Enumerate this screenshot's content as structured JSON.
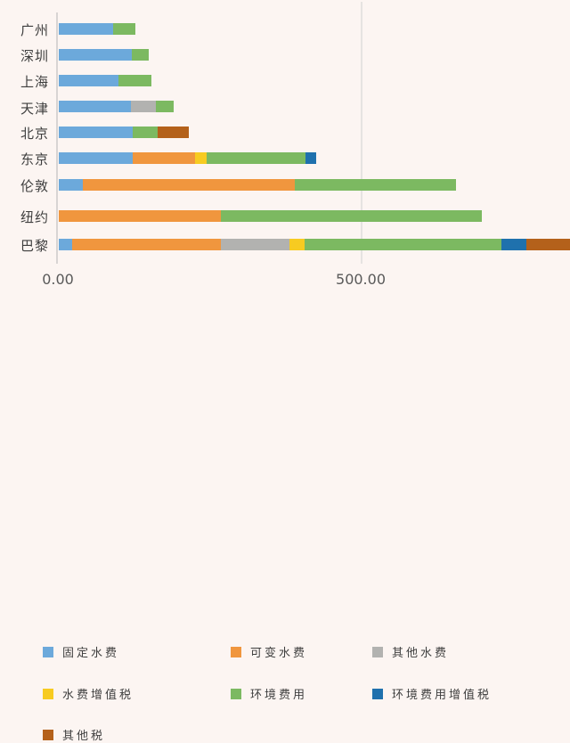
{
  "chart_data": {
    "type": "bar",
    "orientation": "horizontal",
    "stacked": true,
    "title": "",
    "xlabel": "",
    "ylabel": "",
    "categories": [
      "广州",
      "深圳",
      "上海",
      "天津",
      "北京",
      "东京",
      "伦敦",
      "纽约",
      "巴黎"
    ],
    "series": [
      {
        "name": "固定水费",
        "color": "#6CA9DB",
        "values": [
          90,
          121,
          99,
          119,
          122,
          122,
          40,
          0,
          22
        ]
      },
      {
        "name": "可变水费",
        "color": "#F0963E",
        "values": [
          0,
          0,
          0,
          0,
          0,
          103,
          350,
          268,
          246
        ]
      },
      {
        "name": "其他水费",
        "color": "#B2B2B0",
        "values": [
          0,
          0,
          0,
          41,
          0,
          0,
          0,
          0,
          113
        ]
      },
      {
        "name": "水费增值税",
        "color": "#F7CB21",
        "values": [
          0,
          0,
          0,
          0,
          0,
          19,
          0,
          0,
          25
        ]
      },
      {
        "name": "环境费用",
        "color": "#7CB961",
        "values": [
          37,
          28,
          54,
          29,
          41,
          163,
          266,
          431,
          325
        ]
      },
      {
        "name": "环境费用增值税",
        "color": "#1F71AD",
        "values": [
          0,
          0,
          0,
          0,
          0,
          18,
          0,
          0,
          41
        ]
      },
      {
        "name": "其他税",
        "color": "#B4611B",
        "values": [
          0,
          0,
          0,
          0,
          51,
          0,
          0,
          0,
          80
        ]
      }
    ],
    "x_ticks": [
      0,
      500
    ],
    "x_tick_labels": [
      "0.00",
      "500.00"
    ],
    "xlim_visible": [
      0,
      844
    ],
    "gridlines": "vertical at 500 only",
    "legend_position": "bottom",
    "note_clipping": "巴黎 bar extends past the right edge of the plot (其他税 segment clipped)"
  },
  "colors": {
    "background": "#FCF5F2",
    "axis_line": "#D8D4D3",
    "gridline": "#E6E3E1",
    "tick_text": "#595959",
    "label_text": "#3E3E3E"
  }
}
